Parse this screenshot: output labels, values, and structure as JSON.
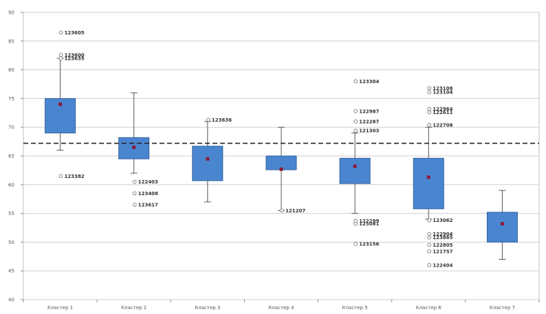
{
  "chart_data": {
    "type": "box",
    "title": "",
    "xlabel": "",
    "ylabel": "",
    "ylim": [
      40,
      90
    ],
    "yticks": [
      40,
      45,
      50,
      55,
      60,
      65,
      70,
      75,
      80,
      85,
      90
    ],
    "grid": true,
    "reference_line": 67.2,
    "colors": {
      "box": "#4a86cf",
      "box_edge": "#2f5f9e",
      "mean": "#8b1a3a",
      "grid": "#cfcfcf",
      "whisker": "#555555",
      "reference": "#222222"
    },
    "categories": [
      "Кластер 1",
      "Кластер 2",
      "Кластер 3",
      "Кластер 4",
      "Кластер 5",
      "Кластер 6",
      "Кластер 7"
    ],
    "boxes": [
      {
        "whisker_low": 66,
        "q1": 69,
        "q3": 75,
        "whisker_high": 82,
        "mean": 74,
        "outliers": [
          {
            "y": 86.5,
            "label": "123605"
          },
          {
            "y": 82.6,
            "label": "123600"
          },
          {
            "y": 82.0,
            "label": "123635"
          },
          {
            "y": 61.5,
            "label": "123382"
          }
        ]
      },
      {
        "whisker_low": 62,
        "q1": 64.5,
        "q3": 68.2,
        "whisker_high": 76,
        "mean": 66.5,
        "outliers": [
          {
            "y": 60.5,
            "label": "122403"
          },
          {
            "y": 58.5,
            "label": "123408"
          },
          {
            "y": 56.5,
            "label": "123617"
          }
        ]
      },
      {
        "whisker_low": 57,
        "q1": 60.7,
        "q3": 66.7,
        "whisker_high": 71,
        "mean": 64.5,
        "outliers": [
          {
            "y": 71.3,
            "label": "123636"
          }
        ]
      },
      {
        "whisker_low": 55.5,
        "q1": 62.6,
        "q3": 65,
        "whisker_high": 70,
        "mean": 62.7,
        "outliers": [
          {
            "y": 55.5,
            "label": "121207"
          }
        ]
      },
      {
        "whisker_low": 55,
        "q1": 60.2,
        "q3": 64.6,
        "whisker_high": 69,
        "mean": 63.2,
        "outliers": [
          {
            "y": 78.0,
            "label": "123304"
          },
          {
            "y": 72.8,
            "label": "122987"
          },
          {
            "y": 71.0,
            "label": "122287"
          },
          {
            "y": 69.4,
            "label": "121303"
          },
          {
            "y": 53.7,
            "label": "122299"
          },
          {
            "y": 53.2,
            "label": "125081"
          },
          {
            "y": 49.7,
            "label": "123156"
          }
        ]
      },
      {
        "whisker_low": 54,
        "q1": 55.8,
        "q3": 64.6,
        "whisker_high": 70,
        "mean": 61.3,
        "outliers": [
          {
            "y": 76.8,
            "label": "123108"
          },
          {
            "y": 76.1,
            "label": "123104"
          },
          {
            "y": 73.2,
            "label": "122964"
          },
          {
            "y": 72.6,
            "label": "122611"
          },
          {
            "y": 70.4,
            "label": "122708"
          },
          {
            "y": 53.8,
            "label": "123062"
          },
          {
            "y": 51.4,
            "label": "122904"
          },
          {
            "y": 50.8,
            "label": "123865"
          },
          {
            "y": 49.5,
            "label": "122805"
          },
          {
            "y": 48.4,
            "label": "121757"
          },
          {
            "y": 46.0,
            "label": "122404"
          }
        ]
      },
      {
        "whisker_low": 47,
        "q1": 50,
        "q3": 55.2,
        "whisker_high": 59,
        "mean": 53.2,
        "outliers": []
      }
    ]
  }
}
